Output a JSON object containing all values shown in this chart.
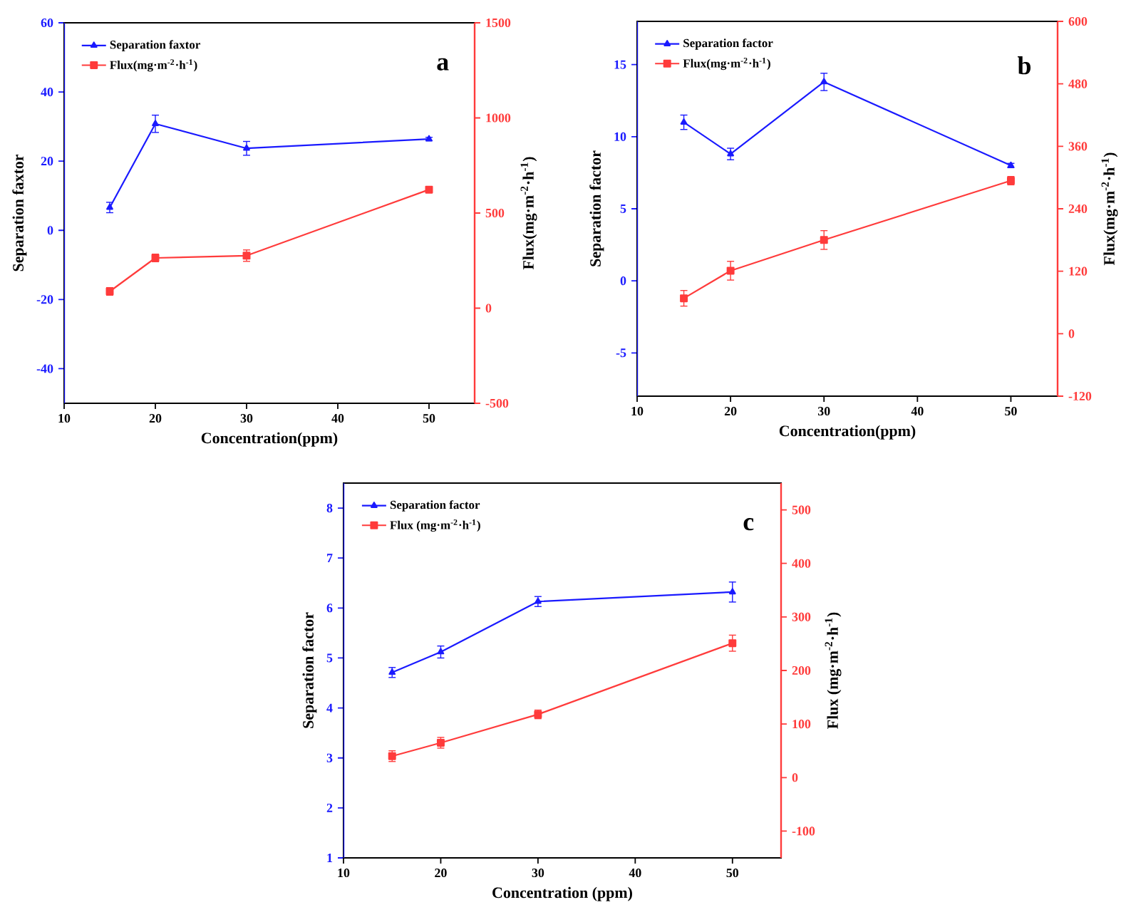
{
  "chart_data": [
    {
      "type": "line",
      "xlabel": "Concentration(ppm)",
      "ylabel": "Separation faxtor",
      "y2label": "Flux(mg·m$^{-2}$·h$^{-1}$)",
      "annotations": [
        "a"
      ],
      "legend": "top left",
      "x": [
        15,
        20,
        30,
        50
      ],
      "xlim": [
        10,
        55
      ],
      "xticks": [
        10,
        20,
        30,
        40,
        50
      ],
      "ylim": [
        -50,
        60
      ],
      "yticks": [
        -40,
        -20,
        0,
        20,
        40,
        60
      ],
      "y2lim": [
        -500,
        1500
      ],
      "y2ticks": [
        -500,
        0,
        500,
        1000,
        1500
      ],
      "series": [
        {
          "name": "Separation faxtor",
          "color": "#1a1aff",
          "marker": "triangle",
          "values": [
            6.6,
            30.8,
            23.7,
            26.4
          ],
          "errors": [
            1.5,
            2.5,
            2,
            0.5
          ]
        },
        {
          "name": "Flux(mg·m$^{-2}$·h$^{-1}$)",
          "color": "#ff3b3b",
          "marker": "square",
          "axis": "y2",
          "values": [
            88,
            264,
            276,
            623
          ],
          "errors": [
            20,
            20,
            30,
            10
          ]
        }
      ]
    },
    {
      "type": "line",
      "xlabel": "Concentration(ppm)",
      "ylabel": "Separation factor",
      "y2label": "Flux(mg·m$^{-2}$·h$^{-1}$)",
      "annotations": [
        "b"
      ],
      "legend": "top left",
      "x": [
        15,
        20,
        30,
        50
      ],
      "xlim": [
        10,
        55
      ],
      "xticks": [
        10,
        20,
        30,
        40,
        50
      ],
      "ylim": [
        -8,
        18
      ],
      "yticks": [
        -5,
        0,
        5,
        10,
        15
      ],
      "y2lim": [
        -120,
        600
      ],
      "y2ticks": [
        -120,
        0,
        120,
        240,
        360,
        480,
        600
      ],
      "series": [
        {
          "name": "Separation factor",
          "color": "#1a1aff",
          "marker": "triangle",
          "values": [
            11.0,
            8.8,
            13.8,
            8.0
          ],
          "errors": [
            0.5,
            0.4,
            0.6,
            0.15
          ]
        },
        {
          "name": "Flux(mg·m$^{-2}$·h$^{-1}$)",
          "color": "#ff3b3b",
          "marker": "square",
          "axis": "y2",
          "values": [
            68,
            121,
            180,
            294
          ],
          "errors": [
            15,
            18,
            18,
            8
          ]
        }
      ]
    },
    {
      "type": "line",
      "xlabel": "Concentration (ppm)",
      "ylabel": "Separation factor",
      "y2label": "Flux (mg·m$^{-2}$·h$^{-1}$)",
      "annotations": [
        "c"
      ],
      "legend": "top left",
      "x": [
        15,
        20,
        30,
        50
      ],
      "xlim": [
        10,
        55
      ],
      "xticks": [
        10,
        20,
        30,
        40,
        50
      ],
      "ylim": [
        1,
        8.5
      ],
      "yticks": [
        1,
        2,
        3,
        4,
        5,
        6,
        7,
        8
      ],
      "y2lim": [
        -150,
        550
      ],
      "y2ticks": [
        -100,
        0,
        100,
        200,
        300,
        400,
        500
      ],
      "series": [
        {
          "name": "Separation factor",
          "color": "#1a1aff",
          "marker": "triangle",
          "values": [
            4.71,
            5.12,
            6.13,
            6.32
          ],
          "errors": [
            0.1,
            0.12,
            0.1,
            0.2
          ]
        },
        {
          "name": "Flux (mg·m$^{-2}$·h$^{-1}$)",
          "color": "#ff3b3b",
          "marker": "square",
          "axis": "y2",
          "values": [
            40,
            65,
            118,
            251
          ],
          "errors": [
            10,
            10,
            8,
            15
          ]
        }
      ]
    }
  ]
}
